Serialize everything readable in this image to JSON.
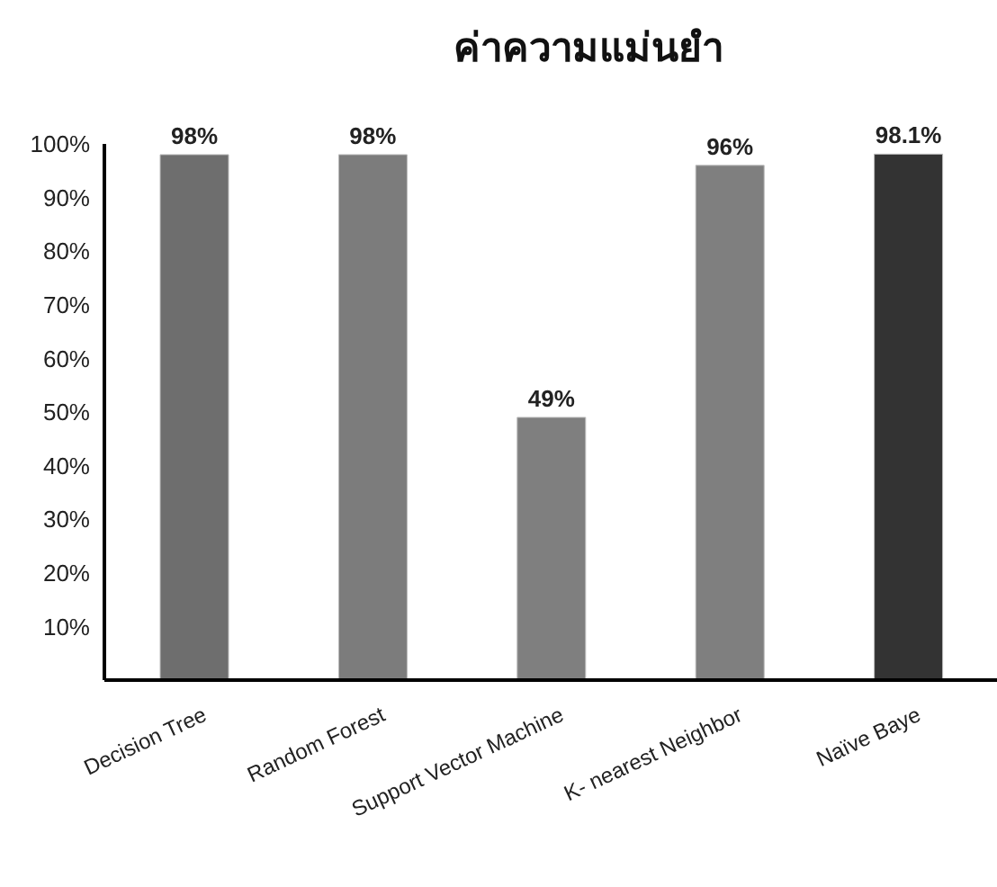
{
  "chart_data": {
    "type": "bar",
    "title": "ค่าความแม่นยำ",
    "categories": [
      "Decision Tree",
      "Random Forest",
      "Support Vector Machine",
      "K- nearest Neighbor",
      "Naïve Baye"
    ],
    "values": [
      98,
      98,
      49,
      96,
      98.1
    ],
    "value_labels": [
      "98%",
      "98%",
      "49%",
      "96%",
      "98.1%"
    ],
    "colors": [
      "#6e6e6e",
      "#7c7c7c",
      "#7f7f7f",
      "#7f7f7f",
      "#333333"
    ],
    "ylim": [
      0,
      100
    ],
    "yticks": [
      {
        "value": 10,
        "label": "10%"
      },
      {
        "value": 20,
        "label": "20%"
      },
      {
        "value": 30,
        "label": "30%"
      },
      {
        "value": 40,
        "label": "40%"
      },
      {
        "value": 50,
        "label": "50%"
      },
      {
        "value": 60,
        "label": "60%"
      },
      {
        "value": 70,
        "label": "70%"
      },
      {
        "value": 80,
        "label": "80%"
      },
      {
        "value": 90,
        "label": "90%"
      },
      {
        "value": 100,
        "label": "100%"
      }
    ],
    "grid": false,
    "legend": false
  }
}
